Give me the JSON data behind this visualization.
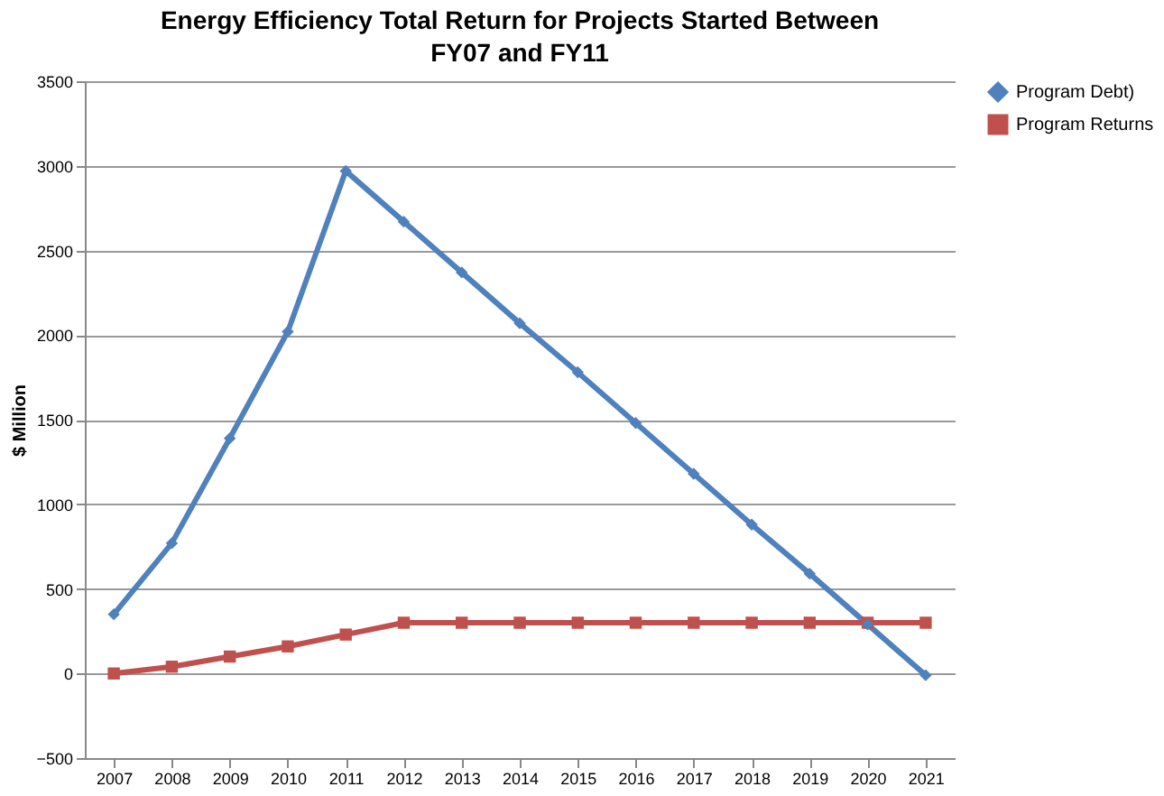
{
  "chart_data": {
    "type": "line",
    "title": "Energy Efficiency Total Return for Projects Started Between FY07 and FY11",
    "ylabel": "$ Million",
    "categories": [
      "2007",
      "2008",
      "2009",
      "2010",
      "2011",
      "2012",
      "2013",
      "2014",
      "2015",
      "2016",
      "2017",
      "2018",
      "2019",
      "2020",
      "2021"
    ],
    "series": [
      {
        "name": "Program Debt)",
        "color": "#4f81bd",
        "marker": "diamond",
        "values": [
          350,
          770,
          1390,
          2020,
          2970,
          2670,
          2370,
          2070,
          1780,
          1480,
          1180,
          880,
          590,
          290,
          -10
        ]
      },
      {
        "name": "Program Returns",
        "color": "#c0504d",
        "marker": "square",
        "values": [
          0,
          40,
          100,
          160,
          230,
          300,
          300,
          300,
          300,
          300,
          300,
          300,
          300,
          300,
          300
        ]
      }
    ],
    "ylim": [
      -500,
      3500
    ],
    "yticks": [
      -500,
      0,
      500,
      1000,
      1500,
      2000,
      2500,
      3000,
      3500
    ],
    "grid": "y",
    "legend": "right"
  }
}
